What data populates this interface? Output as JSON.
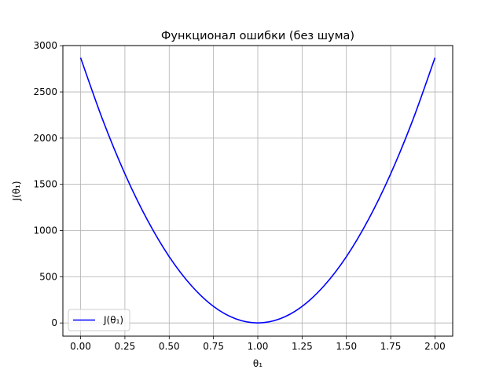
{
  "chart_data": {
    "type": "line",
    "title": "Функционал ошибки (без шума)",
    "xlabel": "θ₁",
    "ylabel": "J(θ₁)",
    "xlim": [
      -0.1,
      2.1
    ],
    "ylim": [
      -143,
      3002
    ],
    "x_ticks": [
      0.0,
      0.25,
      0.5,
      0.75,
      1.0,
      1.25,
      1.5,
      1.75,
      2.0
    ],
    "x_tick_labels": [
      "0.00",
      "0.25",
      "0.50",
      "0.75",
      "1.00",
      "1.25",
      "1.50",
      "1.75",
      "2.00"
    ],
    "y_ticks": [
      0,
      500,
      1000,
      1500,
      2000,
      2500,
      3000
    ],
    "y_tick_labels": [
      "0",
      "500",
      "1000",
      "1500",
      "2000",
      "2500",
      "3000"
    ],
    "grid": true,
    "legend_position": "lower-left",
    "series": [
      {
        "name": "J(θ₁)",
        "color": "#0000ff",
        "x": [
          0.0,
          0.125,
          0.25,
          0.375,
          0.5,
          0.625,
          0.75,
          0.875,
          1.0,
          1.125,
          1.25,
          1.375,
          1.5,
          1.625,
          1.75,
          1.875,
          2.0
        ],
        "y": [
          2870,
          2197,
          1614,
          1121,
          717,
          404,
          179,
          45,
          0,
          45,
          179,
          404,
          717,
          1121,
          1614,
          2197,
          2870
        ]
      }
    ]
  }
}
